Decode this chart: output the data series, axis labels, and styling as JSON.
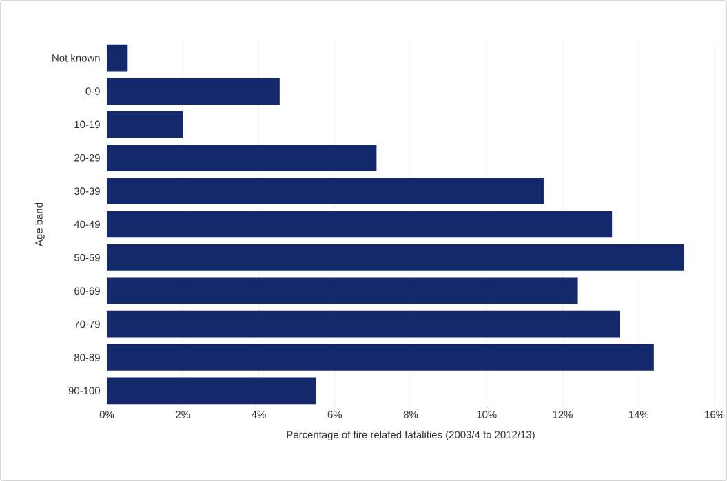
{
  "chart_data": {
    "type": "bar",
    "orientation": "horizontal",
    "xlabel": "Percentage of fire related fatalities (2003/4 to 2012/13)",
    "ylabel": "Age band",
    "categories": [
      "Not known",
      "0-9",
      "10-19",
      "20-29",
      "30-39",
      "40-49",
      "50-59",
      "60-69",
      "70-79",
      "80-89",
      "90-100"
    ],
    "values": [
      0.55,
      4.55,
      2.0,
      7.1,
      11.5,
      13.3,
      15.2,
      12.4,
      13.5,
      14.4,
      5.5
    ],
    "color": "#14296b",
    "grid": "x",
    "xlim": [
      0,
      16
    ],
    "xticks": [
      {
        "value": 0,
        "label": "0%"
      },
      {
        "value": 2,
        "label": "2%"
      },
      {
        "value": 4,
        "label": "4%"
      },
      {
        "value": 6,
        "label": "6%"
      },
      {
        "value": 8,
        "label": "8%"
      },
      {
        "value": 10,
        "label": "10%"
      },
      {
        "value": 12,
        "label": "12%"
      },
      {
        "value": 14,
        "label": "14%"
      },
      {
        "value": 16,
        "label": "16%"
      }
    ]
  }
}
